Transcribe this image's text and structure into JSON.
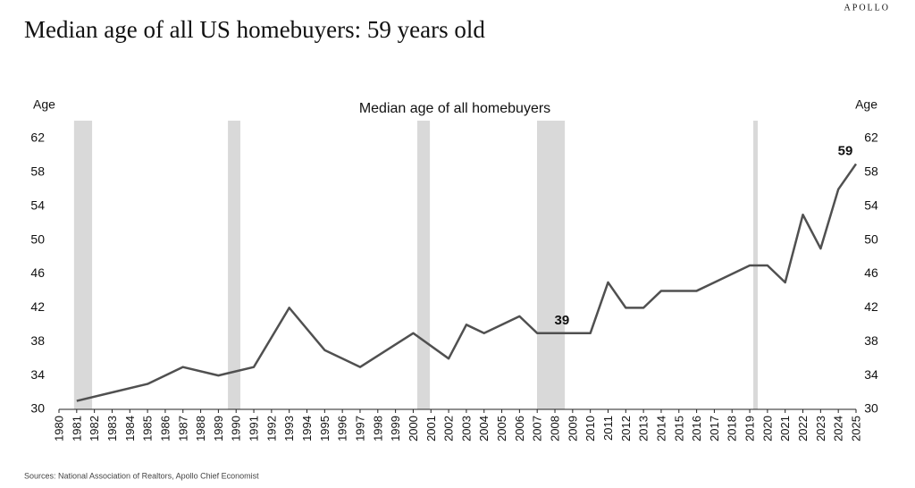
{
  "brand": "APOLLO",
  "title": "Median age of all US homebuyers: 59 years old",
  "source": "Sources: National Association of Realtors, Apollo Chief Economist",
  "chart_data": {
    "type": "line",
    "title": "Median age of all homebuyers",
    "y_label": "Age",
    "y2_label": "Age",
    "x": [
      1981,
      1985,
      1987,
      1989,
      1991,
      1993,
      1995,
      1997,
      2000,
      2002,
      2003,
      2004,
      2006,
      2007,
      2008,
      2009,
      2010,
      2011,
      2012,
      2013,
      2014,
      2015,
      2016,
      2017,
      2019,
      2020,
      2021,
      2022,
      2023,
      2024,
      2025
    ],
    "values": [
      31,
      33,
      35,
      34,
      35,
      42,
      37,
      35,
      39,
      36,
      40,
      39,
      41,
      39,
      39,
      39,
      39,
      45,
      42,
      42,
      44,
      44,
      44,
      45,
      47,
      47,
      45,
      53,
      49,
      56,
      59
    ],
    "color": "#505050",
    "shaded_ranges": [
      [
        1980.85,
        1981.87
      ],
      [
        1989.54,
        1990.24
      ],
      [
        2000.23,
        2000.94
      ],
      [
        2006.99,
        2008.56
      ],
      [
        2019.2,
        2019.45
      ]
    ],
    "shade_color": "#d9d9d9",
    "annotations": [
      {
        "text": "39",
        "x": 2009,
        "y": 39
      },
      {
        "text": "59",
        "x": 2025,
        "y": 59
      }
    ],
    "xlim": [
      1980,
      2025
    ],
    "xticks": [
      1980,
      1981,
      1982,
      1983,
      1984,
      1985,
      1986,
      1987,
      1988,
      1989,
      1990,
      1991,
      1992,
      1993,
      1994,
      1995,
      1996,
      1997,
      1998,
      1999,
      2000,
      2001,
      2002,
      2003,
      2004,
      2005,
      2006,
      2007,
      2008,
      2009,
      2010,
      2011,
      2012,
      2013,
      2014,
      2015,
      2016,
      2017,
      2018,
      2019,
      2020,
      2021,
      2022,
      2023,
      2024,
      2025
    ],
    "ylim": [
      30,
      62
    ],
    "yticks": [
      30,
      34,
      38,
      42,
      46,
      50,
      54,
      58,
      62
    ],
    "y2lim": [
      30,
      62
    ],
    "y2ticks": [
      30,
      34,
      38,
      42,
      46,
      50,
      54,
      58,
      62
    ]
  }
}
